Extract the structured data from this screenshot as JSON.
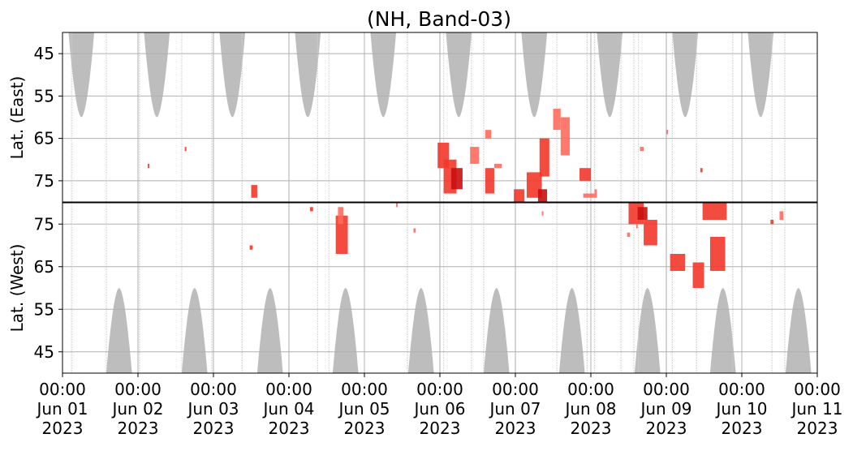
{
  "chart_data": {
    "type": "heatmap",
    "title": "(NH, Band-03)",
    "panels": [
      {
        "id": "east",
        "ylabel": "Lat. (East)",
        "ylim": [
          40,
          80
        ],
        "yticks": [
          45,
          55,
          65,
          75
        ],
        "y_direction": "down"
      },
      {
        "id": "west",
        "ylabel": "Lat. (West)",
        "ylim": [
          40,
          80
        ],
        "yticks": [
          75,
          65,
          55,
          45
        ],
        "y_direction": "up"
      }
    ],
    "xlim_days": [
      0,
      10
    ],
    "xticks": [
      {
        "day": 0,
        "lines": [
          "00:00",
          "Jun 01",
          "2023"
        ]
      },
      {
        "day": 1,
        "lines": [
          "00:00",
          "Jun 02",
          "2023"
        ]
      },
      {
        "day": 2,
        "lines": [
          "00:00",
          "Jun 03",
          "2023"
        ]
      },
      {
        "day": 3,
        "lines": [
          "00:00",
          "Jun 04",
          "2023"
        ]
      },
      {
        "day": 4,
        "lines": [
          "00:00",
          "Jun 05",
          "2023"
        ]
      },
      {
        "day": 5,
        "lines": [
          "00:00",
          "Jun 06",
          "2023"
        ]
      },
      {
        "day": 6,
        "lines": [
          "00:00",
          "Jun 07",
          "2023"
        ]
      },
      {
        "day": 7,
        "lines": [
          "00:00",
          "Jun 08",
          "2023"
        ]
      },
      {
        "day": 8,
        "lines": [
          "00:00",
          "Jun 09",
          "2023"
        ]
      },
      {
        "day": 9,
        "lines": [
          "00:00",
          "Jun 10",
          "2023"
        ]
      },
      {
        "day": 10,
        "lines": [
          "00:00",
          "Jun 11",
          "2023"
        ]
      }
    ],
    "grid": true,
    "colors": {
      "coverage": "#bdbdbd",
      "event_light": "#ff6a5c",
      "event_mid": "#f2372a",
      "event_dark": "#c80f0f",
      "grid": "#b0b0b0",
      "frame": "#000000"
    },
    "coverage_blobs": [
      {
        "panel": "east",
        "center_day": 0.25,
        "half_width_days": 0.17,
        "lat_min": 40,
        "lat_max": 60
      },
      {
        "panel": "east",
        "center_day": 1.25,
        "half_width_days": 0.17,
        "lat_min": 40,
        "lat_max": 60
      },
      {
        "panel": "east",
        "center_day": 2.25,
        "half_width_days": 0.17,
        "lat_min": 40,
        "lat_max": 60
      },
      {
        "panel": "east",
        "center_day": 3.25,
        "half_width_days": 0.17,
        "lat_min": 40,
        "lat_max": 60
      },
      {
        "panel": "east",
        "center_day": 4.25,
        "half_width_days": 0.17,
        "lat_min": 40,
        "lat_max": 60
      },
      {
        "panel": "east",
        "center_day": 5.25,
        "half_width_days": 0.17,
        "lat_min": 40,
        "lat_max": 60
      },
      {
        "panel": "east",
        "center_day": 6.25,
        "half_width_days": 0.17,
        "lat_min": 40,
        "lat_max": 60
      },
      {
        "panel": "east",
        "center_day": 7.25,
        "half_width_days": 0.17,
        "lat_min": 40,
        "lat_max": 60
      },
      {
        "panel": "east",
        "center_day": 8.25,
        "half_width_days": 0.17,
        "lat_min": 40,
        "lat_max": 60
      },
      {
        "panel": "east",
        "center_day": 9.25,
        "half_width_days": 0.17,
        "lat_min": 40,
        "lat_max": 60
      },
      {
        "panel": "west",
        "center_day": 0.75,
        "half_width_days": 0.17,
        "lat_min": 40,
        "lat_max": 60
      },
      {
        "panel": "west",
        "center_day": 1.75,
        "half_width_days": 0.17,
        "lat_min": 40,
        "lat_max": 60
      },
      {
        "panel": "west",
        "center_day": 2.75,
        "half_width_days": 0.17,
        "lat_min": 40,
        "lat_max": 60
      },
      {
        "panel": "west",
        "center_day": 3.75,
        "half_width_days": 0.17,
        "lat_min": 40,
        "lat_max": 60
      },
      {
        "panel": "west",
        "center_day": 4.75,
        "half_width_days": 0.17,
        "lat_min": 40,
        "lat_max": 60
      },
      {
        "panel": "west",
        "center_day": 5.75,
        "half_width_days": 0.17,
        "lat_min": 40,
        "lat_max": 60
      },
      {
        "panel": "west",
        "center_day": 6.75,
        "half_width_days": 0.17,
        "lat_min": 40,
        "lat_max": 60
      },
      {
        "panel": "west",
        "center_day": 7.75,
        "half_width_days": 0.17,
        "lat_min": 40,
        "lat_max": 60
      },
      {
        "panel": "west",
        "center_day": 8.75,
        "half_width_days": 0.17,
        "lat_min": 40,
        "lat_max": 60
      },
      {
        "panel": "west",
        "center_day": 9.75,
        "half_width_days": 0.17,
        "lat_min": 40,
        "lat_max": 60
      }
    ],
    "coverage_lines_days": [
      0.12,
      0.58,
      1.02,
      1.58,
      1.98,
      2.38,
      3.0,
      3.38,
      3.53,
      4.57,
      5.0,
      5.05,
      5.42,
      5.58,
      6.0,
      6.55,
      6.95,
      7.05,
      7.4,
      7.57,
      7.63,
      8.0,
      8.08,
      8.4,
      8.88,
      9.4,
      9.57
    ],
    "events": [
      {
        "panel": "east",
        "day_start": 4.97,
        "day_end": 5.12,
        "lat_min": 66,
        "lat_max": 72,
        "intensity": "mid"
      },
      {
        "panel": "east",
        "day_start": 5.05,
        "day_end": 5.22,
        "lat_min": 70,
        "lat_max": 78,
        "intensity": "mid"
      },
      {
        "panel": "east",
        "day_start": 5.15,
        "day_end": 5.3,
        "lat_min": 72,
        "lat_max": 77,
        "intensity": "dark"
      },
      {
        "panel": "east",
        "day_start": 5.4,
        "day_end": 5.52,
        "lat_min": 67,
        "lat_max": 71,
        "intensity": "light"
      },
      {
        "panel": "east",
        "day_start": 5.6,
        "day_end": 5.68,
        "lat_min": 63,
        "lat_max": 65,
        "intensity": "light"
      },
      {
        "panel": "east",
        "day_start": 5.6,
        "day_end": 5.72,
        "lat_min": 72,
        "lat_max": 78,
        "intensity": "mid"
      },
      {
        "panel": "east",
        "day_start": 5.72,
        "day_end": 5.82,
        "lat_min": 71,
        "lat_max": 72,
        "intensity": "light"
      },
      {
        "panel": "east",
        "day_start": 5.98,
        "day_end": 6.12,
        "lat_min": 77,
        "lat_max": 80,
        "intensity": "mid"
      },
      {
        "panel": "east",
        "day_start": 6.15,
        "day_end": 6.35,
        "lat_min": 73,
        "lat_max": 79,
        "intensity": "mid"
      },
      {
        "panel": "east",
        "day_start": 6.3,
        "day_end": 6.42,
        "lat_min": 77,
        "lat_max": 80,
        "intensity": "dark"
      },
      {
        "panel": "east",
        "day_start": 6.32,
        "day_end": 6.45,
        "lat_min": 65,
        "lat_max": 74,
        "intensity": "mid"
      },
      {
        "panel": "east",
        "day_start": 6.5,
        "day_end": 6.6,
        "lat_min": 58,
        "lat_max": 63,
        "intensity": "light"
      },
      {
        "panel": "east",
        "day_start": 6.6,
        "day_end": 6.72,
        "lat_min": 60,
        "lat_max": 69,
        "intensity": "light"
      },
      {
        "panel": "east",
        "day_start": 6.85,
        "day_end": 7.0,
        "lat_min": 72,
        "lat_max": 75,
        "intensity": "mid"
      },
      {
        "panel": "east",
        "day_start": 6.9,
        "day_end": 7.05,
        "lat_min": 78,
        "lat_max": 79,
        "intensity": "light"
      },
      {
        "panel": "east",
        "day_start": 7.05,
        "day_end": 7.08,
        "lat_min": 77,
        "lat_max": 79,
        "intensity": "light"
      },
      {
        "panel": "east",
        "day_start": 2.5,
        "day_end": 2.58,
        "lat_min": 76,
        "lat_max": 79,
        "intensity": "mid"
      },
      {
        "panel": "east",
        "day_start": 1.13,
        "day_end": 1.15,
        "lat_min": 71,
        "lat_max": 72,
        "intensity": "mid"
      },
      {
        "panel": "east",
        "day_start": 1.62,
        "day_end": 1.64,
        "lat_min": 67,
        "lat_max": 68,
        "intensity": "mid"
      },
      {
        "panel": "east",
        "day_start": 7.65,
        "day_end": 7.7,
        "lat_min": 67,
        "lat_max": 68,
        "intensity": "light"
      },
      {
        "panel": "east",
        "day_start": 8.0,
        "day_end": 8.02,
        "lat_min": 63,
        "lat_max": 64,
        "intensity": "light"
      },
      {
        "panel": "east",
        "day_start": 8.45,
        "day_end": 8.48,
        "lat_min": 72,
        "lat_max": 73,
        "intensity": "mid"
      },
      {
        "panel": "west",
        "day_start": 3.62,
        "day_end": 3.78,
        "lat_min": 68,
        "lat_max": 77,
        "intensity": "mid"
      },
      {
        "panel": "west",
        "day_start": 3.65,
        "day_end": 3.72,
        "lat_min": 75,
        "lat_max": 79,
        "intensity": "light"
      },
      {
        "panel": "west",
        "day_start": 7.5,
        "day_end": 7.7,
        "lat_min": 75,
        "lat_max": 80,
        "intensity": "mid"
      },
      {
        "panel": "west",
        "day_start": 7.62,
        "day_end": 7.75,
        "lat_min": 76,
        "lat_max": 79,
        "intensity": "dark"
      },
      {
        "panel": "west",
        "day_start": 7.7,
        "day_end": 7.88,
        "lat_min": 70,
        "lat_max": 76,
        "intensity": "mid"
      },
      {
        "panel": "west",
        "day_start": 8.05,
        "day_end": 8.25,
        "lat_min": 64,
        "lat_max": 68,
        "intensity": "mid"
      },
      {
        "panel": "west",
        "day_start": 8.35,
        "day_end": 8.5,
        "lat_min": 60,
        "lat_max": 66,
        "intensity": "mid"
      },
      {
        "panel": "west",
        "day_start": 8.58,
        "day_end": 8.78,
        "lat_min": 64,
        "lat_max": 72,
        "intensity": "mid"
      },
      {
        "panel": "west",
        "day_start": 8.48,
        "day_end": 8.8,
        "lat_min": 76,
        "lat_max": 80,
        "intensity": "mid"
      },
      {
        "panel": "west",
        "day_start": 9.5,
        "day_end": 9.55,
        "lat_min": 76,
        "lat_max": 78,
        "intensity": "light"
      },
      {
        "panel": "west",
        "day_start": 9.38,
        "day_end": 9.42,
        "lat_min": 75,
        "lat_max": 76,
        "intensity": "mid"
      },
      {
        "panel": "west",
        "day_start": 2.48,
        "day_end": 2.52,
        "lat_min": 69,
        "lat_max": 70,
        "intensity": "mid"
      },
      {
        "panel": "west",
        "day_start": 3.28,
        "day_end": 3.32,
        "lat_min": 78,
        "lat_max": 79,
        "intensity": "mid"
      },
      {
        "panel": "west",
        "day_start": 4.42,
        "day_end": 4.44,
        "lat_min": 79,
        "lat_max": 80,
        "intensity": "light"
      },
      {
        "panel": "west",
        "day_start": 4.65,
        "day_end": 4.68,
        "lat_min": 73,
        "lat_max": 74,
        "intensity": "light"
      },
      {
        "panel": "west",
        "day_start": 7.48,
        "day_end": 7.52,
        "lat_min": 72,
        "lat_max": 73,
        "intensity": "light"
      },
      {
        "panel": "west",
        "day_start": 7.6,
        "day_end": 7.62,
        "lat_min": 74,
        "lat_max": 75,
        "intensity": "light"
      },
      {
        "panel": "west",
        "day_start": 6.35,
        "day_end": 6.37,
        "lat_min": 77,
        "lat_max": 78,
        "intensity": "light"
      }
    ]
  }
}
